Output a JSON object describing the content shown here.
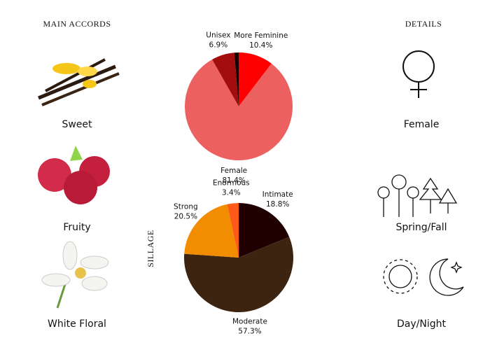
{
  "header": {
    "accords_title": "MAIN ACCORDS",
    "details_title": "DETAILS"
  },
  "accords": [
    "Sweet",
    "Fruity",
    "White Floral"
  ],
  "details": [
    "Female",
    "Spring/Fall",
    "Day/Night"
  ],
  "chart_data": [
    {
      "type": "pie",
      "categories": [
        "More Feminine",
        "Female",
        "Unisex",
        null
      ],
      "values": [
        10.4,
        81.4,
        6.9,
        1.3
      ],
      "value_labels": [
        "10.4%",
        "81.4%",
        "6.9%",
        null
      ],
      "colors": [
        "#ff0000",
        "#ec6060",
        "#a30d0d",
        "#1a0000"
      ]
    },
    {
      "type": "pie",
      "title": "SILLAGE",
      "categories": [
        "Intimate",
        "Moderate",
        "Strong",
        "Enormous"
      ],
      "values": [
        18.8,
        57.3,
        20.5,
        3.4
      ],
      "value_labels": [
        "18.8%",
        "57.3%",
        "20.5%",
        "3.4%"
      ],
      "colors": [
        "#200000",
        "#3d2410",
        "#f28c00",
        "#ff5a1a"
      ]
    }
  ]
}
